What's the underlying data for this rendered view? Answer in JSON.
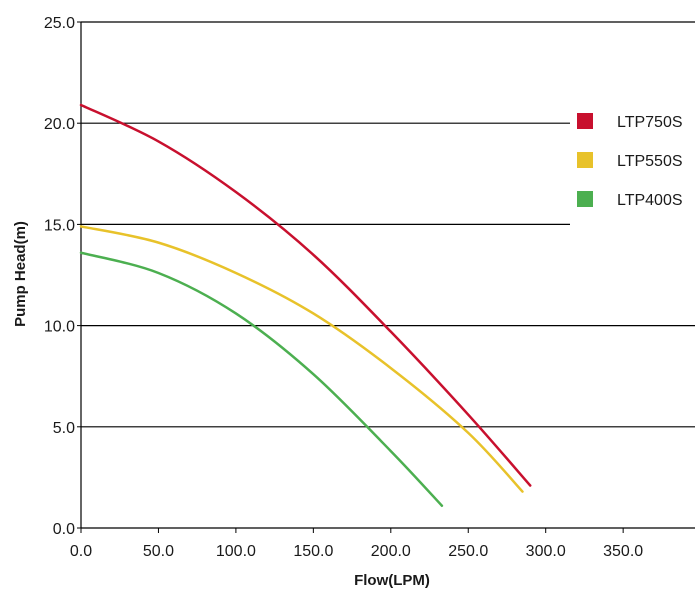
{
  "chart_data": {
    "type": "line",
    "title": "",
    "xlabel": "Flow(LPM)",
    "ylabel": "Pump Head(m)",
    "xlim": [
      0,
      350
    ],
    "ylim": [
      0,
      25
    ],
    "x_ticks": [
      "0.0",
      "50.0",
      "100.0",
      "150.0",
      "200.0",
      "250.0",
      "300.0",
      "350.0"
    ],
    "y_ticks": [
      "0.0",
      "5.0",
      "10.0",
      "15.0",
      "20.0",
      "25.0"
    ],
    "grid": "horizontal",
    "legend_position": "right",
    "series": [
      {
        "name": "LTP750S",
        "color": "#c8102e",
        "points": [
          [
            0,
            20.9
          ],
          [
            50,
            19.1
          ],
          [
            100,
            16.6
          ],
          [
            150,
            13.5
          ],
          [
            200,
            9.7
          ],
          [
            250,
            5.6
          ],
          [
            290,
            2.1
          ]
        ]
      },
      {
        "name": "LTP550S",
        "color": "#e8c22a",
        "points": [
          [
            0,
            14.9
          ],
          [
            50,
            14.1
          ],
          [
            100,
            12.6
          ],
          [
            150,
            10.6
          ],
          [
            200,
            7.9
          ],
          [
            250,
            4.7
          ],
          [
            285,
            1.8
          ]
        ]
      },
      {
        "name": "LTP400S",
        "color": "#4caf50",
        "points": [
          [
            0,
            13.6
          ],
          [
            50,
            12.6
          ],
          [
            100,
            10.6
          ],
          [
            150,
            7.6
          ],
          [
            200,
            3.8
          ],
          [
            233,
            1.1
          ]
        ]
      }
    ]
  }
}
